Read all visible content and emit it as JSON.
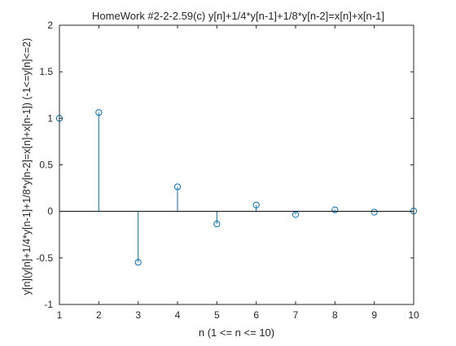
{
  "chart_data": {
    "type": "stem",
    "title": "HomeWork #2-2-2.59(c)  y[n]+1/4*y[n-1]+1/8*y[n-2]=x[n]+x[n-1]",
    "xlabel": "n (1 <= n <= 10)",
    "ylabel": "y[n](y[n]+1/4*y[n-1]+1/8*y[n-2]=x[n]+x[n-1]) (-1<=y[n]<=2)",
    "xlim": [
      1,
      10
    ],
    "ylim": [
      -1,
      2
    ],
    "x_ticks": [
      "1",
      "2",
      "3",
      "4",
      "5",
      "6",
      "7",
      "8",
      "9",
      "10"
    ],
    "y_ticks": [
      "-1",
      "-0.5",
      "0",
      "0.5",
      "1",
      "1.5",
      "2"
    ],
    "y_tick_values": [
      -1,
      -0.5,
      0,
      0.5,
      1,
      1.5,
      2
    ],
    "grid": false,
    "stem_color": "#0072bd",
    "x": [
      1,
      2,
      3,
      4,
      5,
      6,
      7,
      8,
      9,
      10
    ],
    "values": [
      1,
      1.0625,
      -0.546875,
      0.2646,
      -0.1345,
      0.068,
      -0.0338,
      0.017,
      -0.0085,
      0.0042
    ]
  }
}
